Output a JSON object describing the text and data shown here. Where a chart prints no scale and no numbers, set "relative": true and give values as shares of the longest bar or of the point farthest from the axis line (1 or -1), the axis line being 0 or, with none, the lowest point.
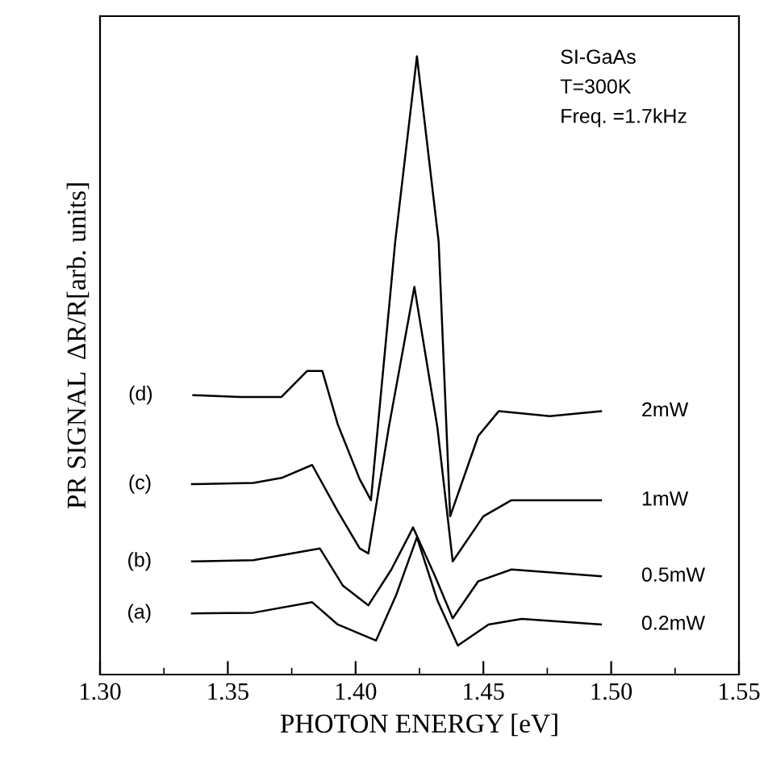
{
  "chart_data": {
    "type": "line",
    "relative": true,
    "xlabel": "PHOTON ENERGY [eV]",
    "ylabel": "PR SIGNAL  ΔR/R[arb. units]",
    "xlim": [
      1.3,
      1.55
    ],
    "xticks": [
      {
        "value": 1.3,
        "label": "1.30"
      },
      {
        "value": 1.35,
        "label": "1.35"
      },
      {
        "value": 1.4,
        "label": "1.40"
      },
      {
        "value": 1.45,
        "label": "1.45"
      },
      {
        "value": 1.5,
        "label": "1.50"
      },
      {
        "value": 1.55,
        "label": "1.55"
      }
    ],
    "tick_labels": "x",
    "grid": false,
    "legend": false,
    "marker": "none",
    "line_style": "solid",
    "series": [
      {
        "name": "2mW",
        "color": "#000000",
        "x": [
          1.3365,
          1.355,
          1.371,
          1.381,
          1.387,
          1.393,
          1.4016,
          1.406,
          1.4155,
          1.424,
          1.4325,
          1.437,
          1.448,
          1.456,
          1.476,
          1.496
        ],
        "values": [
          0.452,
          0.449,
          0.449,
          0.491,
          0.491,
          0.405,
          0.316,
          0.282,
          0.7,
          1.0,
          0.7,
          0.256,
          0.386,
          0.426,
          0.418,
          0.426
        ]
      },
      {
        "name": "1mW",
        "color": "#000000",
        "x": [
          1.336,
          1.36,
          1.371,
          1.383,
          1.393,
          1.4016,
          1.405,
          1.413,
          1.423,
          1.432,
          1.438,
          1.45,
          1.461,
          1.496
        ],
        "values": [
          0.308,
          0.31,
          0.318,
          0.339,
          0.264,
          0.204,
          0.196,
          0.4,
          0.627,
          0.4,
          0.183,
          0.256,
          0.282,
          0.282
        ]
      },
      {
        "name": "0.5mW",
        "color": "#000000",
        "x": [
          1.336,
          1.36,
          1.386,
          1.395,
          1.405,
          1.414,
          1.4225,
          1.431,
          1.438,
          1.448,
          1.461,
          1.496
        ],
        "values": [
          0.183,
          0.185,
          0.204,
          0.144,
          0.112,
          0.17,
          0.238,
          0.16,
          0.091,
          0.151,
          0.17,
          0.159
        ]
      },
      {
        "name": "0.2mW",
        "color": "#000000",
        "x": [
          1.336,
          1.36,
          1.383,
          1.393,
          1.408,
          1.416,
          1.424,
          1.432,
          1.44,
          1.452,
          1.465,
          1.496
        ],
        "values": [
          0.099,
          0.1,
          0.117,
          0.081,
          0.055,
          0.13,
          0.222,
          0.12,
          0.047,
          0.081,
          0.09,
          0.081
        ]
      }
    ],
    "annotations": [
      "SI-GaAs",
      "T=300K",
      "Freq. =1.7kHz",
      "(d)",
      "(c)",
      "(b)",
      "(a)"
    ]
  }
}
